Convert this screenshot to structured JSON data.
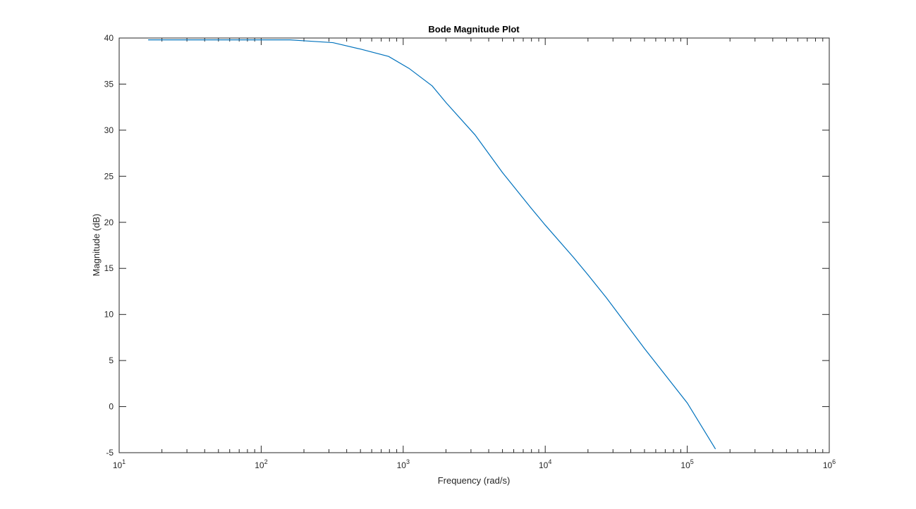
{
  "chart_data": {
    "type": "line",
    "title": "Bode Magnitude Plot",
    "xlabel": "Frequency (rad/s)",
    "ylabel": "Magnitude (dB)",
    "xscale": "log",
    "xlim": [
      10,
      1000000
    ],
    "ylim": [
      -5,
      40
    ],
    "grid": false,
    "line_color": "#0072BD",
    "x_ticks": [
      {
        "value": 10,
        "base": "10",
        "exp": "1"
      },
      {
        "value": 100,
        "base": "10",
        "exp": "2"
      },
      {
        "value": 1000,
        "base": "10",
        "exp": "3"
      },
      {
        "value": 10000,
        "base": "10",
        "exp": "4"
      },
      {
        "value": 100000,
        "base": "10",
        "exp": "5"
      },
      {
        "value": 1000000,
        "base": "10",
        "exp": "6"
      }
    ],
    "y_ticks": [
      {
        "value": 40,
        "label": "40"
      },
      {
        "value": 35,
        "label": "35"
      },
      {
        "value": 30,
        "label": "30"
      },
      {
        "value": 25,
        "label": "25"
      },
      {
        "value": 20,
        "label": "20"
      },
      {
        "value": 15,
        "label": "15"
      },
      {
        "value": 10,
        "label": "10"
      },
      {
        "value": 5,
        "label": "5"
      },
      {
        "value": 0,
        "label": "0"
      },
      {
        "value": -5,
        "label": "-5"
      }
    ],
    "series": [
      {
        "x": [
          16,
          30,
          60,
          100,
          160,
          200,
          320,
          500,
          790,
          1100,
          1600,
          2000,
          3200,
          5000,
          7900,
          10000,
          15800,
          20000,
          27000,
          50000,
          100000,
          158000
        ],
        "y": [
          39.8,
          39.8,
          39.8,
          39.8,
          39.8,
          39.7,
          39.5,
          38.8,
          38.0,
          36.7,
          34.8,
          33.0,
          29.5,
          25.4,
          21.6,
          19.7,
          16.2,
          14.3,
          11.8,
          6.3,
          0.4,
          -4.6
        ]
      }
    ]
  }
}
